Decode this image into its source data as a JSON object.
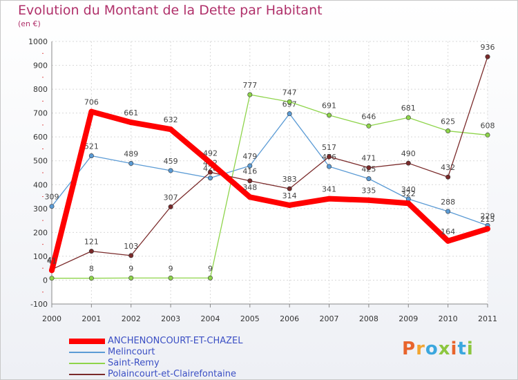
{
  "title": "Evolution du Montant de la Dette par Habitant",
  "unit": "(en €)",
  "logo": {
    "text": "Proxiti",
    "colors": [
      "#e8642c",
      "#f2a531",
      "#3ba7de",
      "#8cc63f",
      "#e8642c",
      "#3ba7de",
      "#8cc63f"
    ]
  },
  "chart_data": {
    "type": "line",
    "x": [
      "2000",
      "2001",
      "2002",
      "2003",
      "2004",
      "2005",
      "2006",
      "2007",
      "2008",
      "2009",
      "2010",
      "2011"
    ],
    "ylim": [
      -100,
      1000
    ],
    "yticks": [
      "-100",
      "0",
      "100",
      "200",
      "300",
      "400",
      "500",
      "600",
      "700",
      "800",
      "900",
      "1000"
    ],
    "grid": true,
    "legend_position": "bottom-left",
    "series": [
      {
        "name": "Melincourt",
        "color": "#5b9bd5",
        "values": [
          309,
          521,
          489,
          459,
          428,
          479,
          697,
          476,
          425,
          340,
          288,
          229
        ]
      },
      {
        "name": "Saint-Remy",
        "color": "#8ed44a",
        "values": [
          8,
          8,
          9,
          9,
          9,
          777,
          747,
          691,
          646,
          681,
          625,
          608
        ]
      },
      {
        "name": "Polaincourt-et-Clairefontaine",
        "color": "#7a2a2a",
        "values": [
          45,
          121,
          103,
          307,
          452,
          416,
          383,
          517,
          471,
          490,
          432,
          936
        ]
      },
      {
        "name": "ANCHENONCOURT-ET-CHAZEL",
        "color": "#ff0000",
        "values": [
          41,
          706,
          661,
          632,
          492,
          348,
          314,
          341,
          335,
          322,
          164,
          215
        ]
      }
    ],
    "legend_order": [
      3,
      0,
      1,
      2
    ]
  }
}
